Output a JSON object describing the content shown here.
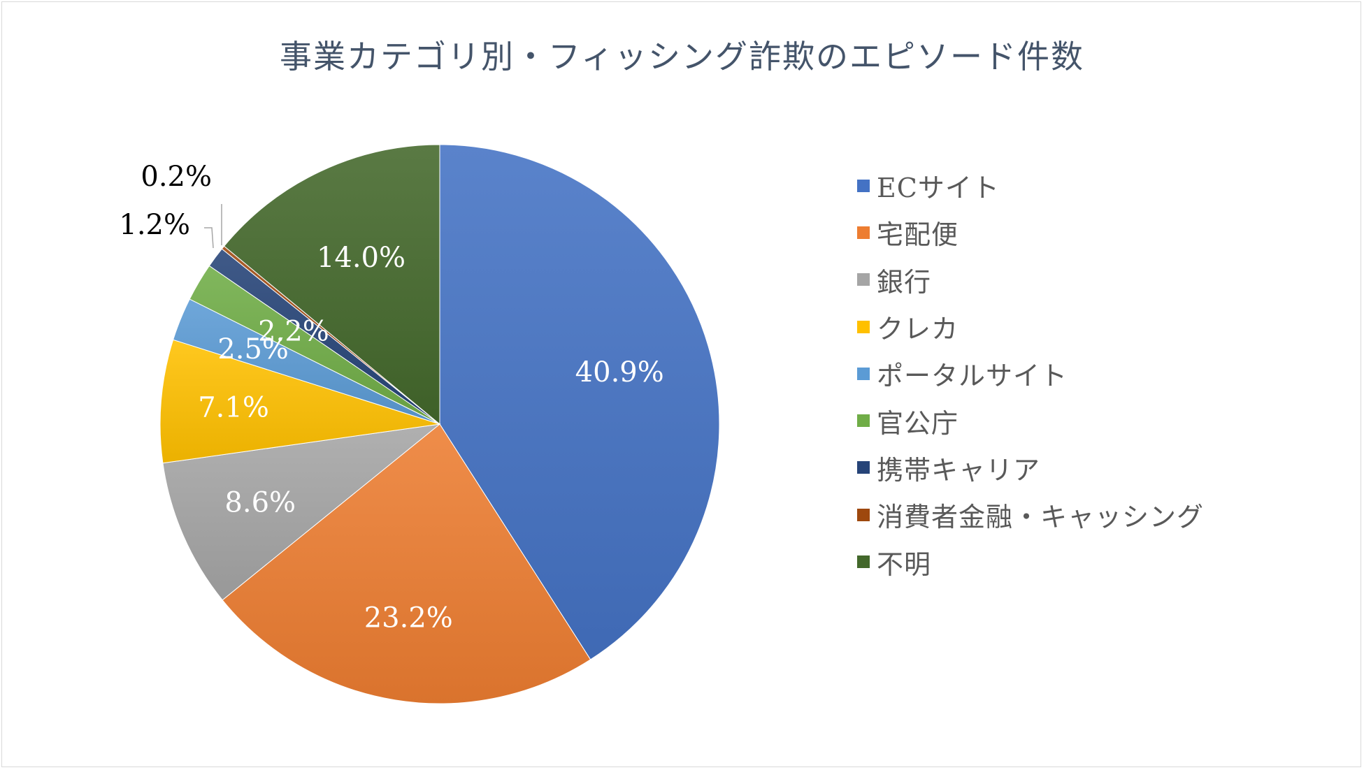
{
  "chart_data": {
    "type": "pie",
    "title": "事業カテゴリ別・フィッシング詐欺のエピソード件数",
    "categories": [
      "ECサイト",
      "宅配便",
      "銀行",
      "クレカ",
      "ポータルサイト",
      "官公庁",
      "携帯キャリア",
      "消費者金融・キャッシング",
      "不明"
    ],
    "values": [
      40.9,
      23.2,
      8.6,
      7.1,
      2.5,
      2.2,
      1.2,
      0.2,
      14.0
    ],
    "data_labels": [
      "40.9%",
      "23.2%",
      "8.6%",
      "7.1%",
      "2.5%",
      "2.2%",
      "1.2%",
      "0.2%",
      "14.0%"
    ],
    "colors": [
      "#4472c4",
      "#ed7d31",
      "#a5a5a5",
      "#ffc000",
      "#5b9bd5",
      "#70ad47",
      "#264478",
      "#9e480e",
      "#43682b"
    ],
    "legend_position": "right",
    "start_angle": "12 o'clock",
    "direction": "clockwise"
  }
}
